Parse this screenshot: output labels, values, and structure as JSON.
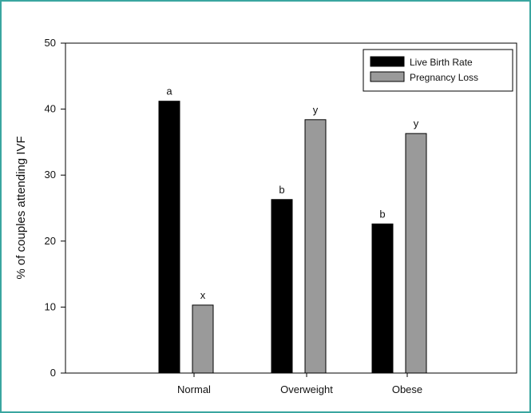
{
  "chart_data": {
    "type": "bar",
    "categories": [
      "Normal",
      "Overweight",
      "Obese"
    ],
    "series": [
      {
        "name": "Live Birth Rate",
        "values": [
          41.2,
          26.3,
          22.6
        ],
        "labels": [
          "a",
          "b",
          "b"
        ],
        "color": "#000000"
      },
      {
        "name": "Pregnancy Loss",
        "values": [
          10.3,
          38.4,
          36.3
        ],
        "labels": [
          "x",
          "y",
          "y"
        ],
        "color": "#9a9a9a"
      }
    ],
    "ylabel": "% of couples attending IVF",
    "ylim": [
      0,
      50
    ],
    "yticks": [
      0,
      10,
      20,
      30,
      40,
      50
    ],
    "grid": false,
    "legend": "top-right"
  },
  "colors": {
    "frame_border": "#3aa6a0"
  }
}
